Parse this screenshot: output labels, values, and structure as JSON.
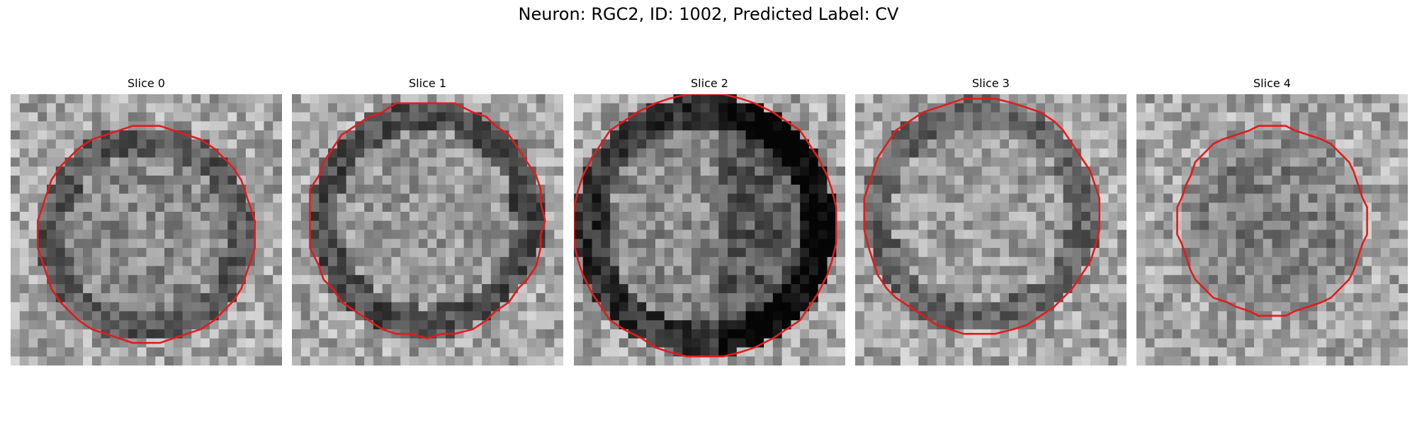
{
  "figure": {
    "title": "Neuron: RGC2, ID: 1002, Predicted Label: CV"
  },
  "panels": [
    {
      "title": "Slice 0"
    },
    {
      "title": "Slice 1"
    },
    {
      "title": "Slice 2"
    },
    {
      "title": "Slice 3"
    },
    {
      "title": "Slice 4"
    }
  ],
  "colors": {
    "contour": "#e41a1c",
    "background": "#ffffff"
  }
}
